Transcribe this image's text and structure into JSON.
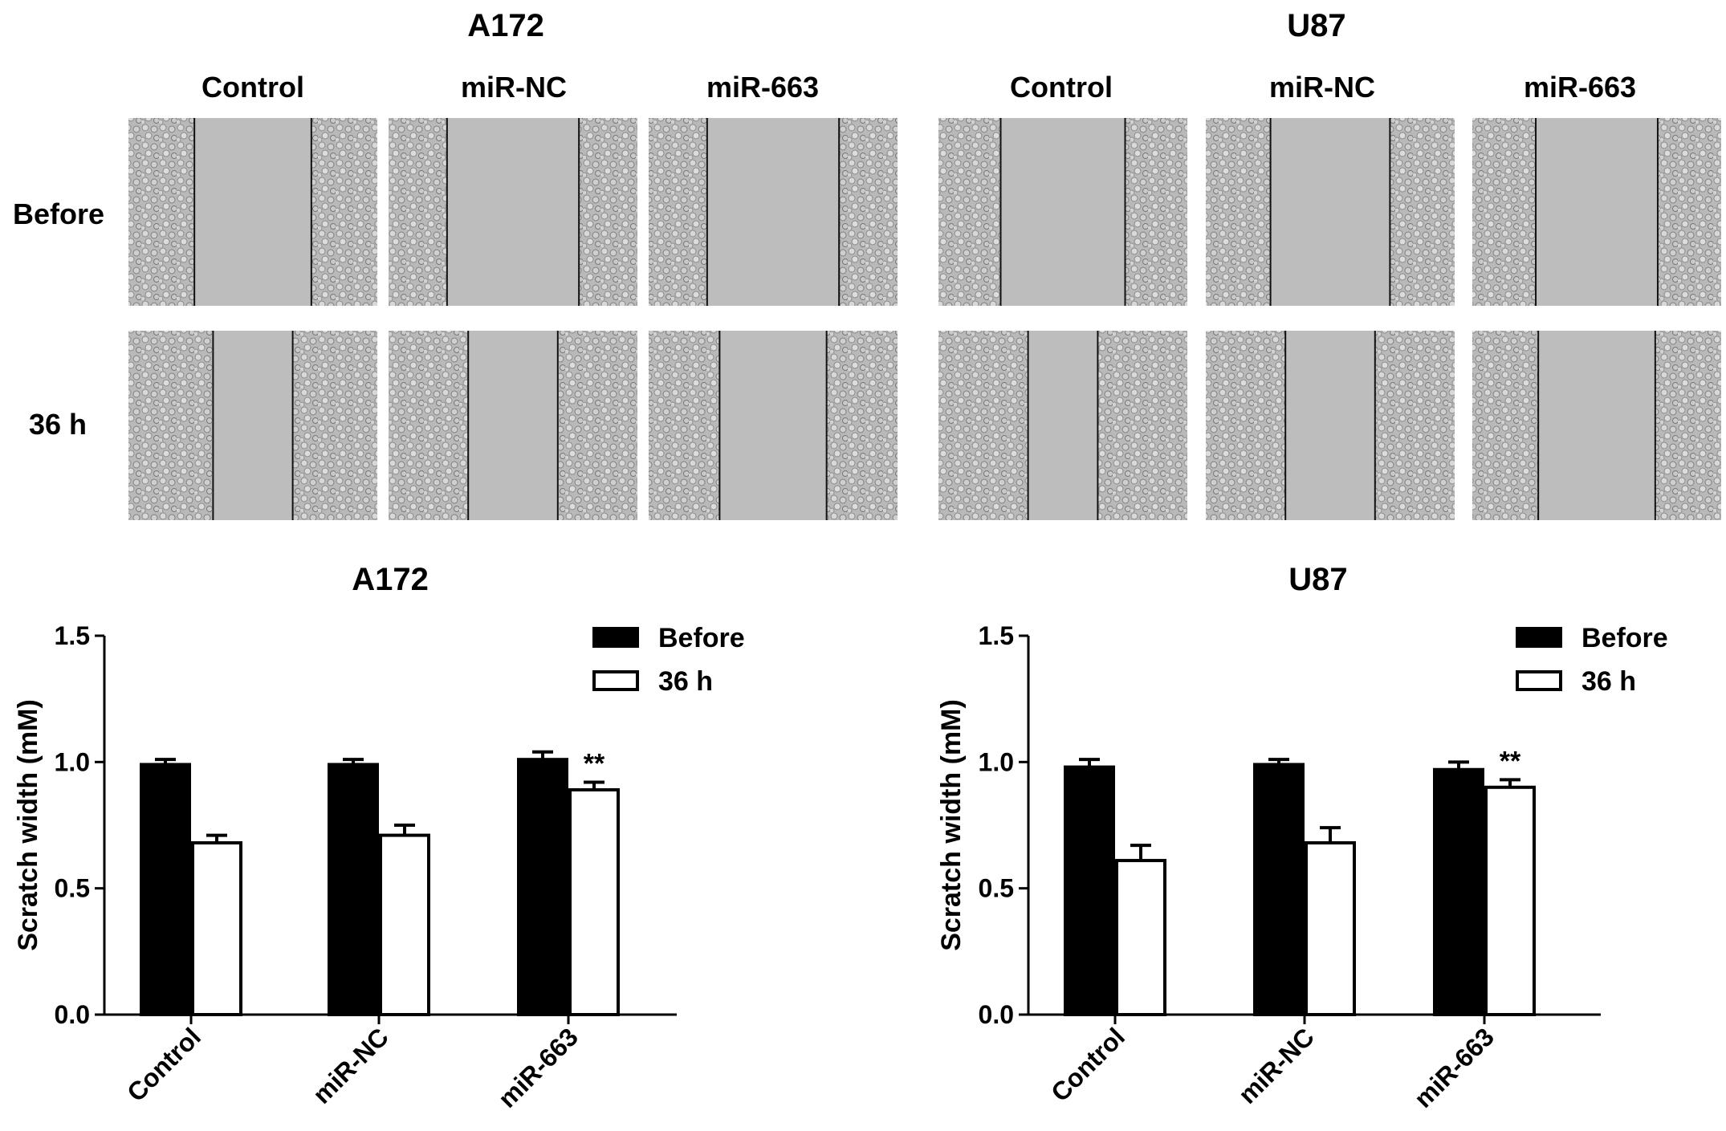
{
  "micrographs": {
    "panels": [
      {
        "cell_line": "A172",
        "columns": [
          "Control",
          "miR-NC",
          "miR-663"
        ]
      },
      {
        "cell_line": "U87",
        "columns": [
          "Control",
          "miR-NC",
          "miR-663"
        ]
      }
    ],
    "rows": [
      "Before",
      "36 h"
    ],
    "gap_widths": [
      [
        [
          0.47,
          0.53,
          0.53
        ],
        [
          0.5,
          0.48,
          0.49
        ]
      ],
      [
        [
          0.32,
          0.36,
          0.43
        ],
        [
          0.28,
          0.36,
          0.47
        ]
      ]
    ]
  },
  "chart_data": [
    {
      "type": "bar",
      "title": "A172",
      "xlabel": "",
      "ylabel": "Scratch width (mM)",
      "ylim": [
        0,
        1.5
      ],
      "yticks": [
        "0.0",
        "0.5",
        "1.0",
        "1.5"
      ],
      "categories": [
        "Control",
        "miR-NC",
        "miR-663"
      ],
      "series": [
        {
          "name": "Before",
          "values": [
            0.99,
            0.99,
            1.01
          ],
          "errors": [
            0.02,
            0.02,
            0.03
          ],
          "fill": "#000000"
        },
        {
          "name": "36 h",
          "values": [
            0.68,
            0.71,
            0.89
          ],
          "errors": [
            0.03,
            0.04,
            0.03
          ],
          "fill": "#ffffff"
        }
      ],
      "annotations": [
        {
          "category": "miR-663",
          "series": "36 h",
          "text": "**"
        }
      ],
      "legend": "top-right",
      "grid": false
    },
    {
      "type": "bar",
      "title": "U87",
      "xlabel": "",
      "ylabel": "Scratch width (mM)",
      "ylim": [
        0,
        1.5
      ],
      "yticks": [
        "0.0",
        "0.5",
        "1.0",
        "1.5"
      ],
      "categories": [
        "Control",
        "miR-NC",
        "miR-663"
      ],
      "series": [
        {
          "name": "Before",
          "values": [
            0.98,
            0.99,
            0.97
          ],
          "errors": [
            0.03,
            0.02,
            0.03
          ],
          "fill": "#000000"
        },
        {
          "name": "36 h",
          "values": [
            0.61,
            0.68,
            0.9
          ],
          "errors": [
            0.06,
            0.06,
            0.03
          ],
          "fill": "#ffffff"
        }
      ],
      "annotations": [
        {
          "category": "miR-663",
          "series": "36 h",
          "text": "**"
        }
      ],
      "legend": "top-right",
      "grid": false
    }
  ]
}
